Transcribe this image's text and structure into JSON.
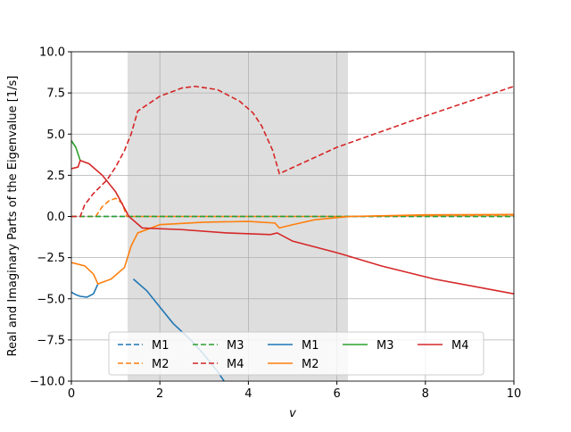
{
  "chart_data": {
    "type": "line",
    "xlabel": "v",
    "ylabel": "Real and Imaginary Parts of the Eigenvalue [1/s]",
    "xlim": [
      0,
      10
    ],
    "ylim": [
      -10,
      10
    ],
    "xticks": [
      0,
      2,
      4,
      6,
      8,
      10
    ],
    "yticks": [
      {
        "value": -10,
        "label": "−10.0"
      },
      {
        "value": -7.5,
        "label": "−7.5"
      },
      {
        "value": -5,
        "label": "−5.0"
      },
      {
        "value": -2.5,
        "label": "−2.5"
      },
      {
        "value": 0,
        "label": "0.0"
      },
      {
        "value": 2.5,
        "label": "2.5"
      },
      {
        "value": 5,
        "label": "5.0"
      },
      {
        "value": 7.5,
        "label": "7.5"
      },
      {
        "value": 10,
        "label": "10.0"
      }
    ],
    "grid": true,
    "shaded_region": [
      1.27,
      6.25
    ],
    "legend_position": "lower center",
    "legend_columns": 5,
    "series": [
      {
        "name": "M1",
        "color": "#1f77b4",
        "linestyle": "dashed",
        "x": [
          0,
          10
        ],
        "values": [
          0,
          0
        ]
      },
      {
        "name": "M2",
        "color": "#ff7f0e",
        "linestyle": "dashed",
        "x": [
          0,
          0.55,
          0.7,
          0.85,
          1.0,
          1.15,
          1.25,
          1.5,
          3,
          5,
          6.3,
          8,
          10
        ],
        "values": [
          0,
          0,
          0.6,
          0.95,
          1.1,
          0.8,
          0,
          0,
          0,
          0,
          0,
          0.05,
          0.08
        ]
      },
      {
        "name": "M3",
        "color": "#2ca02c",
        "linestyle": "dashed",
        "x": [
          0,
          10
        ],
        "values": [
          0,
          0
        ]
      },
      {
        "name": "M4",
        "color": "#d62728",
        "linestyle": "dashed",
        "x": [
          0,
          0.2,
          0.3,
          0.5,
          0.8,
          1.0,
          1.2,
          1.35,
          1.5,
          2.0,
          2.5,
          2.8,
          3.3,
          3.8,
          4.1,
          4.3,
          4.55,
          4.7,
          6,
          8,
          10
        ],
        "values": [
          0,
          0,
          0.7,
          1.4,
          2.2,
          3.0,
          4.0,
          5.0,
          6.4,
          7.3,
          7.8,
          7.9,
          7.7,
          7.0,
          6.3,
          5.5,
          4.0,
          2.6,
          4.2,
          6.1,
          7.9
        ]
      },
      {
        "name": "M1",
        "color": "#1f77b4",
        "linestyle": "solid",
        "x": [
          0,
          0.1,
          0.2,
          0.35,
          0.5,
          0.6,
          1.25,
          1.4,
          1.7,
          2.0,
          2.3,
          2.7,
          3.0,
          3.3,
          3.45
        ],
        "values": [
          -4.6,
          -4.75,
          -4.85,
          -4.9,
          -4.7,
          -4.1,
          null,
          -3.8,
          -4.5,
          -5.5,
          -6.5,
          -7.5,
          -8.4,
          -9.4,
          -10
        ]
      },
      {
        "name": "M2",
        "color": "#ff7f0e",
        "linestyle": "solid",
        "x": [
          0,
          0.3,
          0.5,
          0.6,
          0.9,
          1.2,
          1.35,
          1.5,
          2.0,
          3.0,
          4.0,
          4.6,
          4.7,
          5.0,
          5.5,
          6.3,
          8,
          10
        ],
        "values": [
          -2.8,
          -3.0,
          -3.5,
          -4.1,
          -3.8,
          -3.1,
          -1.8,
          -1.0,
          -0.5,
          -0.35,
          -0.3,
          -0.4,
          -0.7,
          -0.5,
          -0.2,
          0.0,
          0.1,
          0.12
        ]
      },
      {
        "name": "M3",
        "color": "#2ca02c",
        "linestyle": "solid",
        "x": [
          0,
          0.1,
          0.2
        ],
        "values": [
          4.6,
          4.2,
          3.4
        ]
      },
      {
        "name": "M4",
        "color": "#d62728",
        "linestyle": "solid",
        "x": [
          0,
          0.15,
          0.2,
          0.4,
          0.7,
          1.0,
          1.3,
          1.6,
          2.5,
          3.5,
          4.5,
          4.65,
          5.0,
          6.0,
          7.0,
          8.2,
          10
        ],
        "values": [
          2.9,
          3.0,
          3.4,
          3.2,
          2.5,
          1.5,
          0,
          -0.7,
          -0.8,
          -1.0,
          -1.1,
          -1.0,
          -1.5,
          -2.2,
          -3.0,
          -3.8,
          -4.7
        ]
      }
    ]
  }
}
